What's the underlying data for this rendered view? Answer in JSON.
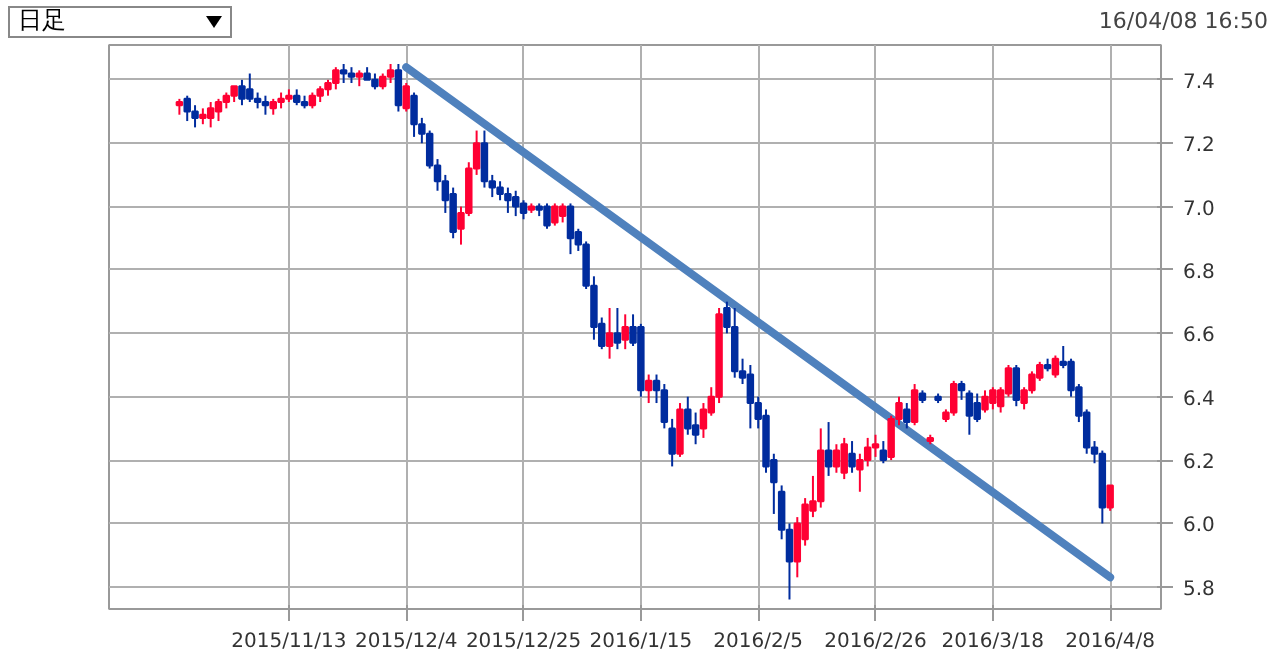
{
  "chart_data": {
    "type": "candlestick",
    "annotations": [
      "日足",
      "16/04/08 16:50"
    ],
    "categories": [
      null,
      null,
      null,
      null,
      null,
      null,
      null,
      null,
      null,
      null,
      null,
      null,
      null,
      null,
      "2015/11/13",
      null,
      null,
      null,
      null,
      null,
      null,
      null,
      null,
      null,
      null,
      null,
      null,
      null,
      null,
      "2015/12/4",
      null,
      null,
      null,
      null,
      null,
      null,
      null,
      null,
      null,
      null,
      null,
      null,
      null,
      null,
      "2015/12/25",
      null,
      null,
      null,
      null,
      null,
      null,
      null,
      null,
      null,
      null,
      null,
      null,
      null,
      null,
      "2016/1/15",
      null,
      null,
      null,
      null,
      null,
      null,
      null,
      null,
      null,
      null,
      null,
      null,
      null,
      null,
      "2016/2/5",
      null,
      null,
      null,
      null,
      null,
      null,
      null,
      null,
      null,
      null,
      null,
      null,
      null,
      null,
      "2016/2/26",
      null,
      null,
      null,
      null,
      null,
      null,
      null,
      null,
      null,
      null,
      null,
      null,
      null,
      null,
      "2016/3/18",
      null,
      null,
      null,
      null,
      null,
      null,
      null,
      null,
      null,
      null,
      null,
      null,
      null,
      null,
      "2016/4/8"
    ],
    "ohlc": [
      [
        7.32,
        7.34,
        7.29,
        7.33
      ],
      [
        7.34,
        7.35,
        7.27,
        7.3
      ],
      [
        7.3,
        7.32,
        7.25,
        7.28
      ],
      [
        7.28,
        7.31,
        7.26,
        7.29
      ],
      [
        7.28,
        7.33,
        7.25,
        7.31
      ],
      [
        7.3,
        7.34,
        7.27,
        7.33
      ],
      [
        7.33,
        7.36,
        7.31,
        7.35
      ],
      [
        7.35,
        7.38,
        7.33,
        7.38
      ],
      [
        7.38,
        7.4,
        7.32,
        7.34
      ],
      [
        7.37,
        7.42,
        7.33,
        7.34
      ],
      [
        7.34,
        7.36,
        7.31,
        7.33
      ],
      [
        7.33,
        7.35,
        7.29,
        7.32
      ],
      [
        7.31,
        7.34,
        7.29,
        7.33
      ],
      [
        7.33,
        7.36,
        7.31,
        7.34
      ],
      [
        7.34,
        7.37,
        7.33,
        7.35
      ],
      [
        7.35,
        7.37,
        7.32,
        7.33
      ],
      [
        7.33,
        7.35,
        7.31,
        7.32
      ],
      [
        7.32,
        7.36,
        7.31,
        7.35
      ],
      [
        7.35,
        7.38,
        7.33,
        7.37
      ],
      [
        7.37,
        7.4,
        7.35,
        7.39
      ],
      [
        7.39,
        7.44,
        7.37,
        7.43
      ],
      [
        7.43,
        7.45,
        7.39,
        7.42
      ],
      [
        7.42,
        7.44,
        7.39,
        7.41
      ],
      [
        7.41,
        7.43,
        7.38,
        7.42
      ],
      [
        7.42,
        7.44,
        7.4,
        7.4
      ],
      [
        7.4,
        7.42,
        7.37,
        7.38
      ],
      [
        7.38,
        7.42,
        7.37,
        7.41
      ],
      [
        7.41,
        7.45,
        7.39,
        7.43
      ],
      [
        7.43,
        7.45,
        7.3,
        7.32
      ],
      [
        7.31,
        7.39,
        7.3,
        7.38
      ],
      [
        7.35,
        7.36,
        7.22,
        7.26
      ],
      [
        7.26,
        7.28,
        7.2,
        7.23
      ],
      [
        7.23,
        7.24,
        7.12,
        7.13
      ],
      [
        7.13,
        7.15,
        7.05,
        7.08
      ],
      [
        7.08,
        7.1,
        6.98,
        7.02
      ],
      [
        7.04,
        7.06,
        6.9,
        6.92
      ],
      [
        6.93,
        7.0,
        6.88,
        6.98
      ],
      [
        6.98,
        7.14,
        6.97,
        7.12
      ],
      [
        7.12,
        7.24,
        7.1,
        7.2
      ],
      [
        7.2,
        7.24,
        7.06,
        7.08
      ],
      [
        7.08,
        7.1,
        7.03,
        7.06
      ],
      [
        7.06,
        7.08,
        7.02,
        7.04
      ],
      [
        7.04,
        7.06,
        6.98,
        7.02
      ],
      [
        7.03,
        7.05,
        6.97,
        7.0
      ],
      [
        7.01,
        7.02,
        6.96,
        6.98
      ],
      [
        6.99,
        7.01,
        6.98,
        7.0
      ],
      [
        7.0,
        7.01,
        6.97,
        6.99
      ],
      [
        7.0,
        7.01,
        6.93,
        6.94
      ],
      [
        6.95,
        7.01,
        6.94,
        7.0
      ],
      [
        6.97,
        7.01,
        6.95,
        7.0
      ],
      [
        7.0,
        7.01,
        6.85,
        6.9
      ],
      [
        6.92,
        6.93,
        6.86,
        6.88
      ],
      [
        6.88,
        6.89,
        6.74,
        6.75
      ],
      [
        6.75,
        6.78,
        6.58,
        6.62
      ],
      [
        6.63,
        6.65,
        6.55,
        6.56
      ],
      [
        6.56,
        6.68,
        6.52,
        6.6
      ],
      [
        6.6,
        6.68,
        6.55,
        6.57
      ],
      [
        6.58,
        6.66,
        6.55,
        6.62
      ],
      [
        6.62,
        6.66,
        6.56,
        6.57
      ],
      [
        6.62,
        6.63,
        6.4,
        6.42
      ],
      [
        6.42,
        6.47,
        6.38,
        6.45
      ],
      [
        6.45,
        6.47,
        6.38,
        6.42
      ],
      [
        6.42,
        6.44,
        6.3,
        6.32
      ],
      [
        6.3,
        6.33,
        6.18,
        6.22
      ],
      [
        6.22,
        6.38,
        6.21,
        6.36
      ],
      [
        6.36,
        6.4,
        6.28,
        6.3
      ],
      [
        6.31,
        6.35,
        6.25,
        6.28
      ],
      [
        6.3,
        6.38,
        6.27,
        6.36
      ],
      [
        6.35,
        6.43,
        6.34,
        6.4
      ],
      [
        6.4,
        6.68,
        6.38,
        6.66
      ],
      [
        6.68,
        6.7,
        6.6,
        6.62
      ],
      [
        6.62,
        6.68,
        6.46,
        6.48
      ],
      [
        6.48,
        6.52,
        6.44,
        6.46
      ],
      [
        6.47,
        6.5,
        6.3,
        6.38
      ],
      [
        6.38,
        6.4,
        6.3,
        6.33
      ],
      [
        6.34,
        6.36,
        6.16,
        6.18
      ],
      [
        6.2,
        6.22,
        6.03,
        6.13
      ],
      [
        6.1,
        6.12,
        5.95,
        5.98
      ],
      [
        5.98,
        6.0,
        5.76,
        5.88
      ],
      [
        5.88,
        6.02,
        5.83,
        6.0
      ],
      [
        5.95,
        6.08,
        5.93,
        6.06
      ],
      [
        6.04,
        6.15,
        6.02,
        6.07
      ],
      [
        6.07,
        6.3,
        6.05,
        6.23
      ],
      [
        6.23,
        6.32,
        6.15,
        6.18
      ],
      [
        6.18,
        6.25,
        6.16,
        6.23
      ],
      [
        6.16,
        6.27,
        6.14,
        6.25
      ],
      [
        6.22,
        6.26,
        6.16,
        6.18
      ],
      [
        6.17,
        6.22,
        6.1,
        6.2
      ],
      [
        6.2,
        6.27,
        6.18,
        6.24
      ],
      [
        6.24,
        6.28,
        6.21,
        6.25
      ],
      [
        6.23,
        6.26,
        6.19,
        6.2
      ],
      [
        6.21,
        6.34,
        6.2,
        6.33
      ],
      [
        6.33,
        6.4,
        6.31,
        6.38
      ],
      [
        6.36,
        6.38,
        6.3,
        6.32
      ],
      [
        6.32,
        6.44,
        6.31,
        6.42
      ],
      [
        6.41,
        6.42,
        6.38,
        6.39
      ],
      [
        6.26,
        6.28,
        6.25,
        6.27
      ],
      [
        6.4,
        6.41,
        6.38,
        6.39
      ],
      [
        6.33,
        6.36,
        6.32,
        6.35
      ],
      [
        6.35,
        6.45,
        6.34,
        6.44
      ],
      [
        6.44,
        6.45,
        6.39,
        6.42
      ],
      [
        6.41,
        6.42,
        6.28,
        6.34
      ],
      [
        6.38,
        6.41,
        6.32,
        6.33
      ],
      [
        6.36,
        6.42,
        6.35,
        6.4
      ],
      [
        6.38,
        6.43,
        6.36,
        6.42
      ],
      [
        6.37,
        6.43,
        6.35,
        6.42
      ],
      [
        6.41,
        6.5,
        6.4,
        6.49
      ],
      [
        6.49,
        6.5,
        6.37,
        6.39
      ],
      [
        6.38,
        6.43,
        6.36,
        6.42
      ],
      [
        6.42,
        6.48,
        6.41,
        6.47
      ],
      [
        6.46,
        6.51,
        6.45,
        6.5
      ],
      [
        6.5,
        6.52,
        6.48,
        6.49
      ],
      [
        6.47,
        6.53,
        6.46,
        6.52
      ],
      [
        6.51,
        6.56,
        6.49,
        6.5
      ],
      [
        6.51,
        6.52,
        6.4,
        6.42
      ],
      [
        6.43,
        6.44,
        6.32,
        6.34
      ],
      [
        6.35,
        6.36,
        6.22,
        6.24
      ],
      [
        6.24,
        6.26,
        6.19,
        6.22
      ],
      [
        6.22,
        6.23,
        6.0,
        6.05
      ],
      [
        6.05,
        6.12,
        6.04,
        6.12
      ]
    ],
    "colors": [
      "#ff0033",
      "#002c9e",
      "#002c9e",
      "#ff0033",
      "#ff0033",
      "#ff0033",
      "#ff0033",
      "#ff0033",
      "#002c9e",
      "#002c9e",
      "#002c9e",
      "#002c9e",
      "#ff0033",
      "#ff0033",
      "#ff0033",
      "#002c9e",
      "#002c9e",
      "#ff0033",
      "#ff0033",
      "#ff0033",
      "#ff0033",
      "#002c9e",
      "#002c9e",
      "#ff0033",
      "#002c9e",
      "#002c9e",
      "#ff0033",
      "#ff0033",
      "#002c9e",
      "#ff0033",
      "#002c9e",
      "#002c9e",
      "#002c9e",
      "#002c9e",
      "#002c9e",
      "#002c9e",
      "#ff0033",
      "#ff0033",
      "#ff0033",
      "#002c9e",
      "#002c9e",
      "#002c9e",
      "#002c9e",
      "#002c9e",
      "#002c9e",
      "#ff0033",
      "#002c9e",
      "#002c9e",
      "#ff0033",
      "#ff0033",
      "#002c9e",
      "#002c9e",
      "#002c9e",
      "#002c9e",
      "#002c9e",
      "#ff0033",
      "#002c9e",
      "#ff0033",
      "#002c9e",
      "#002c9e",
      "#ff0033",
      "#002c9e",
      "#002c9e",
      "#002c9e",
      "#ff0033",
      "#002c9e",
      "#002c9e",
      "#ff0033",
      "#ff0033",
      "#ff0033",
      "#002c9e",
      "#002c9e",
      "#002c9e",
      "#002c9e",
      "#002c9e",
      "#002c9e",
      "#002c9e",
      "#002c9e",
      "#002c9e",
      "#ff0033",
      "#ff0033",
      "#ff0033",
      "#ff0033",
      "#002c9e",
      "#ff0033",
      "#ff0033",
      "#002c9e",
      "#ff0033",
      "#ff0033",
      "#ff0033",
      "#002c9e",
      "#ff0033",
      "#ff0033",
      "#002c9e",
      "#ff0033",
      "#002c9e",
      "#ff0033",
      "#002c9e",
      "#ff0033",
      "#ff0033",
      "#002c9e",
      "#002c9e",
      "#002c9e",
      "#ff0033",
      "#ff0033",
      "#ff0033",
      "#ff0033",
      "#002c9e",
      "#ff0033",
      "#ff0033",
      "#ff0033",
      "#002c9e",
      "#ff0033",
      "#002c9e",
      "#002c9e",
      "#002c9e",
      "#002c9e",
      "#002c9e",
      "#002c9e",
      "#ff0033"
    ],
    "series": [
      {
        "type": "line",
        "x": [
          "2015/12/4",
          "2016/4/8"
        ],
        "values": [
          7.44,
          5.83
        ],
        "color": "#4f81bd"
      }
    ],
    "ylim": [
      5.73,
      7.51
    ],
    "yticks": [
      5.8,
      {
        "value": 6,
        "label": "6.0"
      },
      6.2,
      6.4,
      6.6,
      6.8,
      {
        "value": 7,
        "label": "7.0"
      },
      7.2,
      7.4
    ],
    "grid": true
  }
}
